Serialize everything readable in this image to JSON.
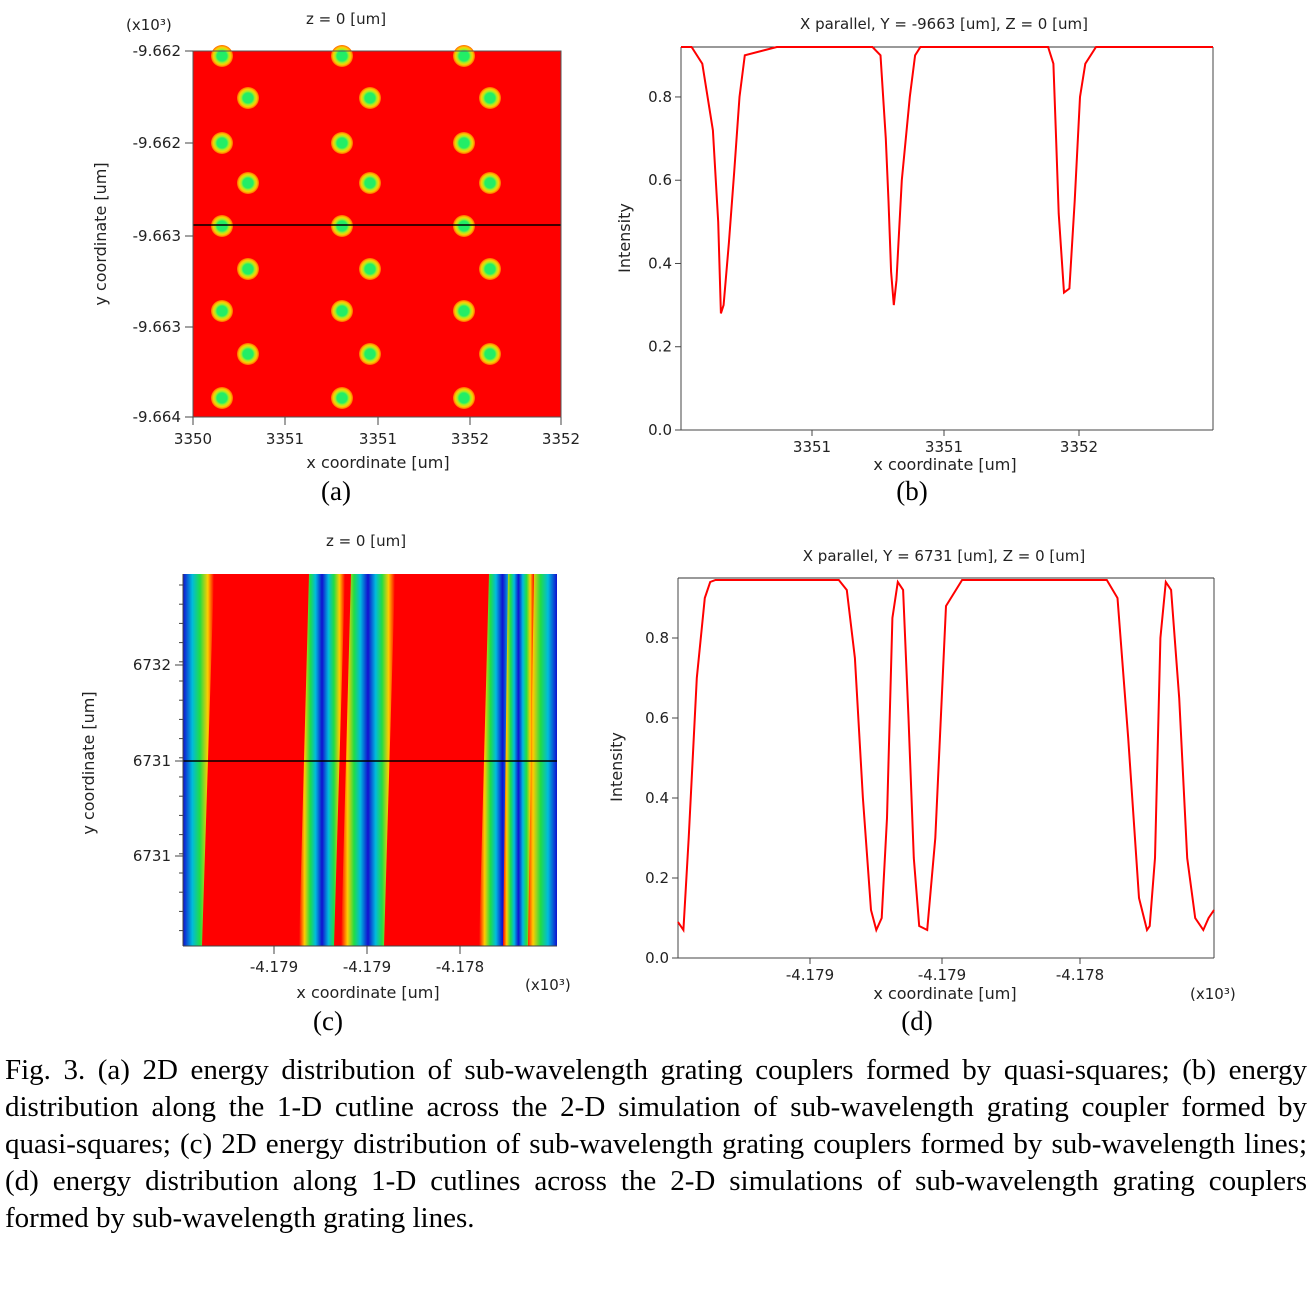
{
  "figure": {
    "caption": "Fig. 3. (a) 2D energy distribution of sub-wavelength grating couplers formed by quasi-squares; (b) energy distribution along the 1-D cutline across the 2-D simulation of sub-wavelength grating coupler formed by quasi-squares; (c) 2D energy distribution of sub-wavelength grating couplers formed by sub-wavelength lines; (d) energy distribution along 1-D cutlines across the 2-D simulations of sub-wavelength grating couplers formed by sub-wavelength grating lines."
  },
  "panels": {
    "a": {
      "label": "(a)",
      "title": "z = 0 [um]",
      "xlabel": "x coordinate [um]",
      "ylabel": "y coordinate [um]",
      "y_multiplier": "(x10³)"
    },
    "b": {
      "label": "(b)",
      "title": "X parallel, Y = -9663 [um], Z = 0 [um]",
      "xlabel": "x coordinate [um]",
      "ylabel": "Intensity"
    },
    "c": {
      "label": "(c)",
      "title": "z = 0 [um]",
      "xlabel": "x coordinate [um]",
      "ylabel": "y coordinate [um]",
      "x_multiplier": "(x10³)"
    },
    "d": {
      "label": "(d)",
      "title": "X parallel, Y = 6731 [um], Z = 0 [um]",
      "xlabel": "x coordinate [um]",
      "ylabel": "Intensity",
      "x_multiplier": "(x10³)"
    }
  },
  "colors": {
    "field": "#ff0000",
    "spot_core": "#22ee66",
    "spot_ring": "#ffcc00",
    "stripe_blue": "#1010d0",
    "curve": "#ff0000",
    "cutline": "#000000"
  },
  "chart_data": [
    {
      "panel": "a",
      "type": "heatmap",
      "title": "z = 0 [um]",
      "xlabel": "x coordinate [um]",
      "ylabel": "y coordinate [um]",
      "x_tick_labels": [
        "3350",
        "3351",
        "3351",
        "3352",
        "3352"
      ],
      "y_tick_labels": [
        "-9.662",
        "-9.662",
        "-9.663",
        "-9.663",
        "-9.664"
      ],
      "y_multiplier": "(x10³)",
      "description_grid": {
        "rows": 9,
        "columns_per_row": 3,
        "pattern": "staggered quasi-square spots"
      },
      "cutline": true
    },
    {
      "panel": "b",
      "type": "line",
      "title": "X parallel, Y = -9663 [um], Z = 0 [um]",
      "xlabel": "x coordinate [um]",
      "ylabel": "Intensity",
      "x_tick_labels": [
        "3351",
        "3351",
        "3352"
      ],
      "y_ticks": [
        0.0,
        0.2,
        0.4,
        0.6,
        0.8
      ],
      "ylim": [
        0,
        0.92
      ],
      "x": [
        0,
        0.02,
        0.04,
        0.06,
        0.07,
        0.075,
        0.08,
        0.09,
        0.1,
        0.11,
        0.12,
        0.18,
        0.36,
        0.375,
        0.385,
        0.39,
        0.395,
        0.4,
        0.405,
        0.415,
        0.43,
        0.44,
        0.45,
        0.69,
        0.7,
        0.705,
        0.71,
        0.72,
        0.73,
        0.74,
        0.75,
        0.76,
        0.78,
        1.0
      ],
      "y": [
        0.92,
        0.92,
        0.88,
        0.72,
        0.5,
        0.28,
        0.3,
        0.45,
        0.62,
        0.8,
        0.9,
        0.92,
        0.92,
        0.9,
        0.7,
        0.55,
        0.38,
        0.3,
        0.36,
        0.6,
        0.8,
        0.9,
        0.92,
        0.92,
        0.88,
        0.7,
        0.52,
        0.33,
        0.34,
        0.55,
        0.8,
        0.88,
        0.92,
        0.92
      ]
    },
    {
      "panel": "c",
      "type": "heatmap",
      "title": "z = 0 [um]",
      "xlabel": "x coordinate [um]",
      "ylabel": "y coordinate [um]",
      "x_tick_labels": [
        "-4.179",
        "-4.179",
        "-4.178"
      ],
      "x_multiplier": "(x10³)",
      "y_tick_labels": [
        "6732",
        "6731",
        "6731"
      ],
      "pattern": "slanted sub-wavelength grating lines",
      "cutline": true
    },
    {
      "panel": "d",
      "type": "line",
      "title": "X parallel, Y = 6731 [um], Z = 0 [um]",
      "xlabel": "x coordinate [um]",
      "ylabel": "Intensity",
      "x_tick_labels": [
        "-4.179",
        "-4.179",
        "-4.178"
      ],
      "x_multiplier": "(x10³)",
      "y_ticks": [
        0.0,
        0.2,
        0.4,
        0.6,
        0.8
      ],
      "ylim": [
        0,
        0.95
      ],
      "x": [
        0,
        0.01,
        0.02,
        0.035,
        0.05,
        0.06,
        0.07,
        0.3,
        0.315,
        0.33,
        0.345,
        0.36,
        0.37,
        0.38,
        0.39,
        0.4,
        0.41,
        0.42,
        0.43,
        0.44,
        0.45,
        0.465,
        0.48,
        0.5,
        0.53,
        0.55,
        0.56,
        0.57,
        0.8,
        0.82,
        0.84,
        0.86,
        0.875,
        0.88,
        0.89,
        0.9,
        0.91,
        0.92,
        0.935,
        0.95,
        0.965,
        0.98,
        0.99,
        1.0
      ],
      "y": [
        0.09,
        0.07,
        0.3,
        0.7,
        0.9,
        0.94,
        0.945,
        0.945,
        0.92,
        0.75,
        0.4,
        0.12,
        0.07,
        0.1,
        0.35,
        0.85,
        0.94,
        0.92,
        0.6,
        0.25,
        0.08,
        0.07,
        0.3,
        0.88,
        0.945,
        0.945,
        0.945,
        0.945,
        0.945,
        0.9,
        0.55,
        0.15,
        0.07,
        0.08,
        0.25,
        0.8,
        0.94,
        0.92,
        0.65,
        0.25,
        0.1,
        0.07,
        0.1,
        0.12
      ]
    }
  ]
}
